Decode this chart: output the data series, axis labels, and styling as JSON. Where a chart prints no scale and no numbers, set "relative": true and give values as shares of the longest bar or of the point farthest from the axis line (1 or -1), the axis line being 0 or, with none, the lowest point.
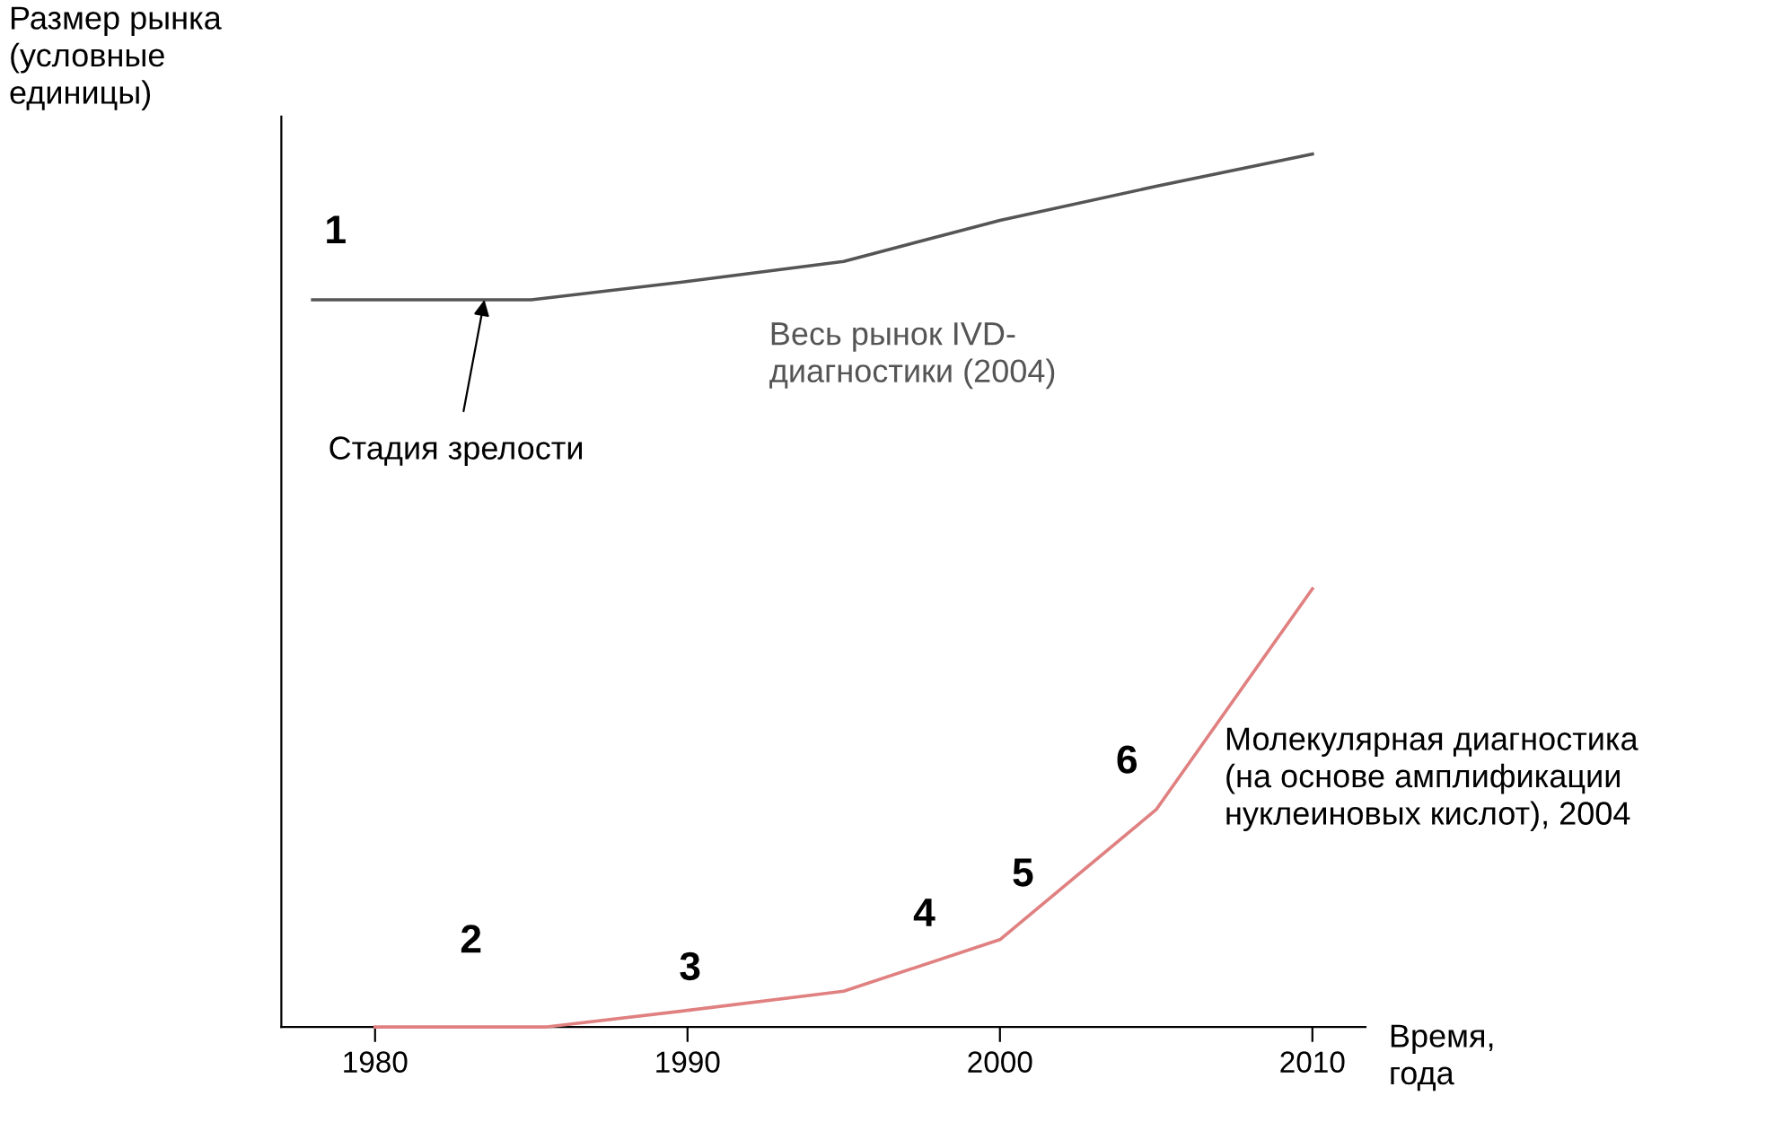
{
  "chart_data": {
    "type": "line",
    "relative": true,
    "xlabel": "Время,\nгода",
    "ylabel": "Размер рынка\n(условные\nединицы)",
    "xlim": [
      1977,
      2011.7
    ],
    "xticks": [
      1980,
      1990,
      2000,
      2010
    ],
    "grid": false,
    "legend": false,
    "marker": "none",
    "line_style": "solid",
    "series": [
      {
        "name": "Весь рынок IVD-\nдиагностики (2004)",
        "color": "#555555",
        "x": [
          1978,
          1985,
          1990,
          1995,
          2000,
          2005,
          2010
        ],
        "values": [
          0.833,
          0.833,
          0.854,
          0.877,
          0.924,
          0.963,
          1
        ]
      },
      {
        "name": "Молекулярная диагностика\n(на основе амплификации\nнуклеиновых кислот), 2004",
        "color": "#e08080",
        "x": [
          1980,
          1985.5,
          1990,
          1995,
          2000,
          2005,
          2010
        ],
        "values": [
          0,
          0,
          0.019,
          0.041,
          0.1,
          0.249,
          0.502
        ]
      }
    ],
    "annotations": [
      "1",
      "2",
      "3",
      "4",
      "5",
      "6",
      {
        "text": "Стадия зрелости",
        "x": 1983.5,
        "y": 0.833
      }
    ]
  }
}
